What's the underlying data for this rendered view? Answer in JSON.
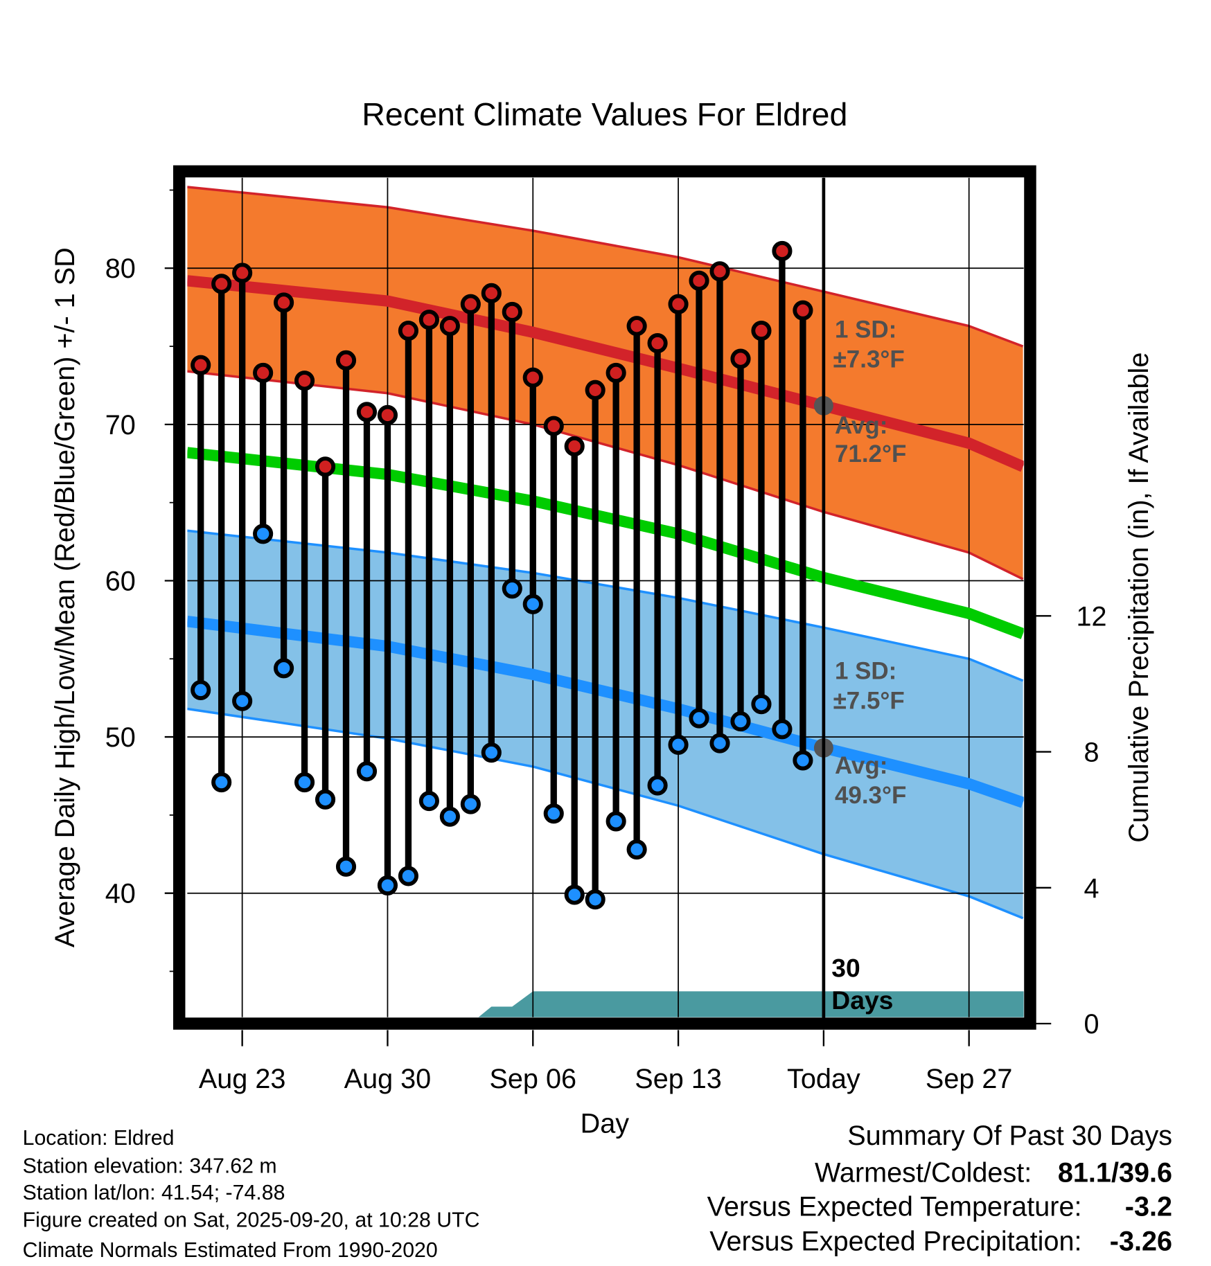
{
  "chart_data": {
    "type": "line",
    "title": "Recent Climate Values For Eldred",
    "xlabel": "Day",
    "ylabel": "Average Daily High/Low/Mean (Red/Blue/Green) +/- 1 SD",
    "y2label": "Cumulative Precipitation (in), If Available",
    "x_origin": "Aug 21",
    "xlim_days": [
      -0.65,
      39.6
    ],
    "ylim": [
      31.9,
      86.5
    ],
    "y2lim": [
      0,
      30
    ],
    "x_ticks": [
      {
        "day": 2,
        "label": "Aug 23"
      },
      {
        "day": 9,
        "label": "Aug 30"
      },
      {
        "day": 16,
        "label": "Sep 06"
      },
      {
        "day": 23,
        "label": "Sep 13"
      },
      {
        "day": 30,
        "label": "Today"
      },
      {
        "day": 37,
        "label": "Sep 27"
      }
    ],
    "y_ticks": [
      40,
      50,
      60,
      70,
      80
    ],
    "y_minor_ticks": [
      35,
      45,
      55,
      65,
      75,
      85
    ],
    "y2_ticks": [
      0,
      4,
      8,
      12
    ],
    "grid": true,
    "observed": {
      "dates": [
        "Aug 21",
        "Aug 22",
        "Aug 23",
        "Aug 24",
        "Aug 25",
        "Aug 26",
        "Aug 27",
        "Aug 28",
        "Aug 29",
        "Aug 30",
        "Aug 31",
        "Sep 01",
        "Sep 02",
        "Sep 03",
        "Sep 04",
        "Sep 05",
        "Sep 06",
        "Sep 07",
        "Sep 08",
        "Sep 09",
        "Sep 10",
        "Sep 11",
        "Sep 12",
        "Sep 13",
        "Sep 14",
        "Sep 15",
        "Sep 16",
        "Sep 17",
        "Sep 18",
        "Sep 19"
      ],
      "high": [
        73.8,
        79.0,
        79.7,
        73.3,
        77.8,
        72.8,
        67.3,
        74.1,
        70.8,
        70.6,
        76.0,
        76.7,
        76.3,
        77.7,
        78.4,
        77.2,
        73.0,
        69.9,
        68.6,
        72.2,
        73.3,
        76.3,
        75.2,
        77.7,
        79.2,
        79.8,
        74.2,
        76.0,
        81.1,
        77.3
      ],
      "low": [
        53.0,
        47.1,
        52.3,
        63.0,
        54.4,
        47.1,
        46.0,
        41.7,
        47.8,
        40.5,
        41.1,
        45.9,
        44.9,
        45.7,
        49.0,
        59.5,
        58.5,
        45.1,
        39.9,
        39.6,
        44.6,
        42.8,
        46.9,
        49.5,
        51.2,
        49.6,
        51.0,
        52.1,
        50.5,
        48.5
      ],
      "cumulative_precip": [
        0,
        0,
        0,
        0,
        0,
        0,
        0,
        0,
        0,
        0,
        0,
        0,
        0,
        0,
        0.5,
        0.5,
        0.95,
        0.95,
        0.95,
        0.95,
        0.95,
        0.95,
        0.95,
        0.95,
        0.95,
        0.95,
        0.95,
        0.95,
        0.95,
        0.95
      ]
    },
    "normals": {
      "days": [
        -0.65,
        9,
        16,
        23,
        30,
        37,
        39.6
      ],
      "high_avg": [
        79.2,
        77.9,
        75.9,
        73.6,
        71.2,
        68.8,
        67.3
      ],
      "high_upper": [
        85.2,
        83.9,
        82.4,
        80.7,
        78.5,
        76.3,
        75.0
      ],
      "high_lower": [
        73.4,
        72.0,
        70.0,
        67.4,
        64.4,
        61.8,
        60.1
      ],
      "mean_avg": [
        68.2,
        66.8,
        65.1,
        63.0,
        60.2,
        57.9,
        56.6
      ],
      "low_avg": [
        57.4,
        55.8,
        54.0,
        51.8,
        49.3,
        47.0,
        45.8
      ],
      "low_upper": [
        63.2,
        61.8,
        60.5,
        58.9,
        57.0,
        55.0,
        53.6
      ],
      "low_lower": [
        51.8,
        49.9,
        48.1,
        45.6,
        42.5,
        39.8,
        38.4
      ]
    },
    "today_values": {
      "high_avg": 71.2,
      "low_avg": 49.3
    },
    "annotations": {
      "high_sd_1": "1 SD:",
      "high_sd_2": "±7.3°F",
      "high_avg_1": "Avg:",
      "high_avg_2": "71.2°F",
      "low_sd_1": "1 SD:",
      "low_sd_2": "±7.5°F",
      "low_avg_1": "Avg:",
      "low_avg_2": "49.3°F",
      "window_1": "30",
      "window_2": "Days"
    },
    "colors": {
      "high_band": "#f47a2d",
      "high_line": "#d2232a",
      "low_band": "#84c1e8",
      "low_line": "#1e90ff",
      "mean_line": "#00cc00",
      "precip": "#4a9aa0",
      "high_dot": "#d02020",
      "low_dot": "#1e90ff",
      "today_dot": "#555555"
    }
  },
  "info": {
    "location": "Location: Eldred",
    "elevation": "Station elevation: 347.62 m",
    "latlon": "Station lat/lon: 41.54; -74.88",
    "created": "Figure created on Sat, 2025-09-20, at 10:28 UTC",
    "normals": "Climate Normals Estimated From 1990-2020"
  },
  "summary": {
    "title": "Summary Of Past 30 Days",
    "warm_cold_label": "Warmest/Coldest:",
    "warm_cold_value": "81.1/39.6",
    "temp_label": "Versus Expected Temperature:",
    "temp_value": "-3.2",
    "temp_color": "#2196f3",
    "precip_label": "Versus Expected Precipitation:",
    "precip_value": "-3.26",
    "precip_color": "#a0522d"
  }
}
